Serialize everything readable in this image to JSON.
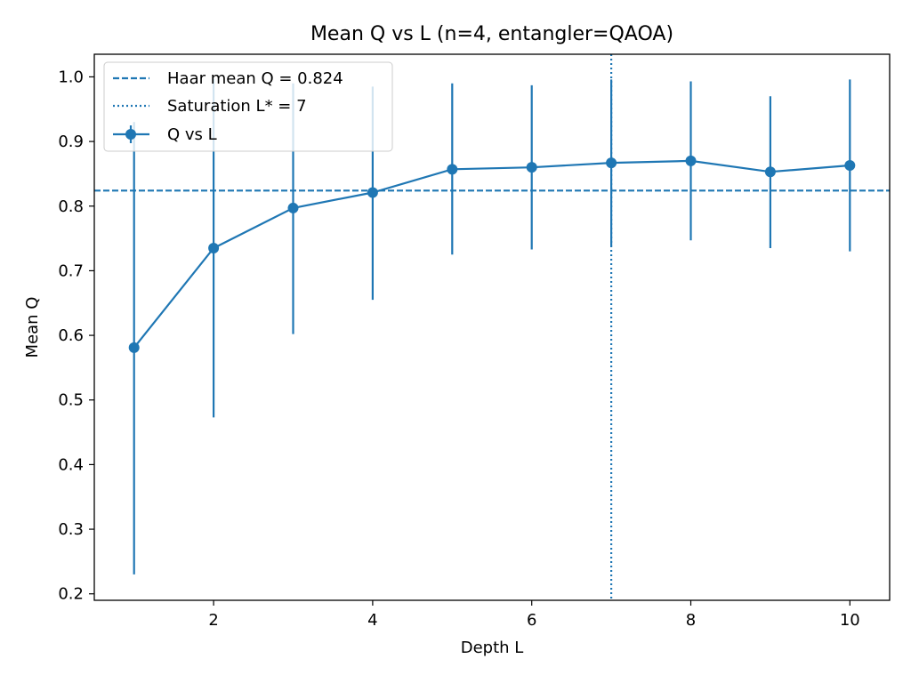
{
  "chart_data": {
    "type": "line",
    "title": "Mean Q vs L (n=4, entangler=QAOA)",
    "xlabel": "Depth L",
    "ylabel": "Mean Q",
    "xlim": [
      0.5,
      10.5
    ],
    "ylim": [
      0.19,
      1.035
    ],
    "xticks": [
      2,
      4,
      6,
      8,
      10
    ],
    "yticks": [
      0.2,
      0.3,
      0.4,
      0.5,
      0.6,
      0.7,
      0.8,
      0.9,
      1.0
    ],
    "xtick_labels": [
      "2",
      "4",
      "6",
      "8",
      "10"
    ],
    "ytick_labels": [
      "0.2",
      "0.3",
      "0.4",
      "0.5",
      "0.6",
      "0.7",
      "0.8",
      "0.9",
      "1.0"
    ],
    "color": "#1f77b4",
    "legend_position": "top-left",
    "series": [
      {
        "name": "Q vs L",
        "x": [
          1,
          2,
          3,
          4,
          5,
          6,
          7,
          8,
          9,
          10
        ],
        "y": [
          0.581,
          0.735,
          0.797,
          0.821,
          0.857,
          0.86,
          0.867,
          0.87,
          0.853,
          0.863
        ],
        "err_low": [
          0.23,
          0.473,
          0.602,
          0.655,
          0.725,
          0.733,
          0.738,
          0.747,
          0.735,
          0.73
        ],
        "err_high": [
          0.93,
          0.997,
          0.99,
          0.985,
          0.99,
          0.987,
          0.996,
          0.993,
          0.97,
          0.996
        ]
      }
    ],
    "reference_lines": [
      {
        "orientation": "horizontal",
        "value": 0.824,
        "style": "dashed",
        "label": "Haar mean Q = 0.824"
      },
      {
        "orientation": "vertical",
        "value": 7,
        "style": "dotted",
        "label": "Saturation L* = 7"
      }
    ]
  }
}
